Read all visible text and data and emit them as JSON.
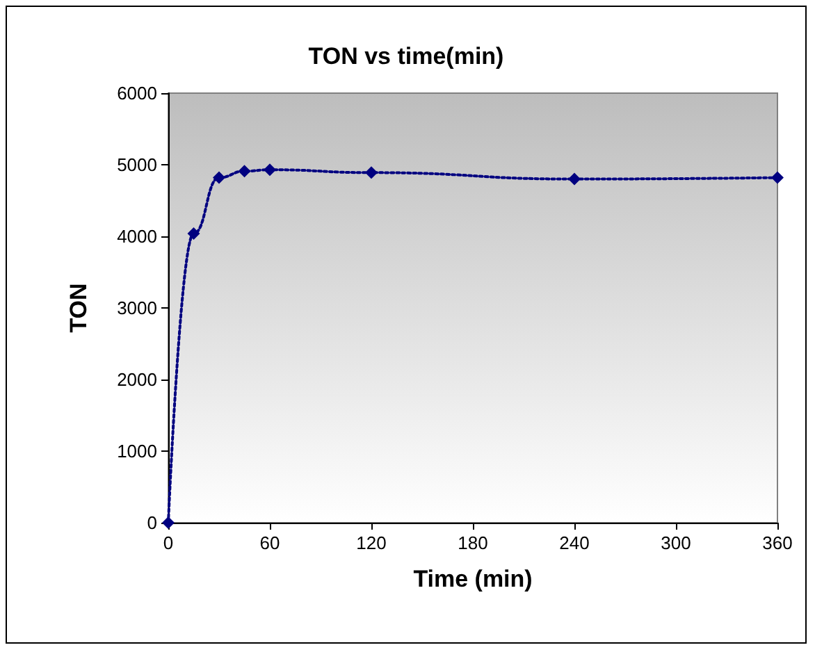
{
  "chart_data": {
    "type": "line",
    "title": "TON vs time(min)",
    "xlabel": "Time (min)",
    "ylabel": "TON",
    "x": [
      0,
      15,
      30,
      45,
      60,
      120,
      240,
      360
    ],
    "series": [
      {
        "color": "#000080",
        "values": [
          0,
          4040,
          4820,
          4910,
          4930,
          4890,
          4800,
          4820
        ]
      }
    ],
    "xlim": [
      0,
      360
    ],
    "xticks": [
      0,
      60,
      120,
      180,
      240,
      300,
      360
    ],
    "ylim": [
      0,
      6000
    ],
    "yticks": [
      0,
      1000,
      2000,
      3000,
      4000,
      5000,
      6000
    ],
    "grid": false,
    "marker": "diamond",
    "line_style": "dotted"
  }
}
